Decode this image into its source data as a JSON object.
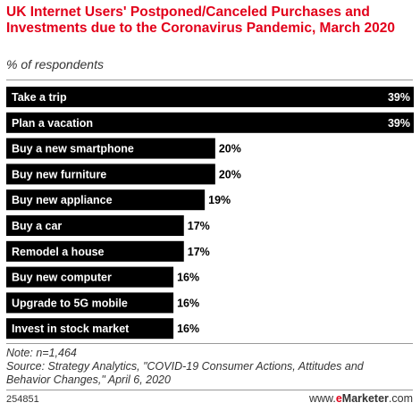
{
  "header": {
    "title": "UK Internet Users' Postponed/Canceled Purchases and Investments due to the Coronavirus Pandemic, March 2020",
    "subtitle": "% of respondents"
  },
  "chart_data": {
    "type": "bar",
    "orientation": "horizontal",
    "categories": [
      "Take a trip",
      "Plan a vacation",
      "Buy a new smartphone",
      "Buy new furniture",
      "Buy new appliance",
      "Buy a car",
      "Remodel a house",
      "Buy new computer",
      "Upgrade to 5G mobile",
      "Invest in stock market"
    ],
    "values": [
      39,
      39,
      20,
      20,
      19,
      17,
      17,
      16,
      16,
      16
    ],
    "value_labels": [
      "39%",
      "39%",
      "20%",
      "20%",
      "19%",
      "17%",
      "17%",
      "16%",
      "16%",
      "16%"
    ],
    "xlim": [
      0,
      39
    ],
    "bar_color": "#000000",
    "grid": false
  },
  "footer": {
    "note": "Note: n=1,464",
    "source_line1": "Source: Strategy Analytics, \"COVID-19 Consumer Actions, Attitudes and",
    "source_line2": "Behavior Changes,\" April 6, 2020",
    "chart_id": "254851",
    "brand_prefix": "www.",
    "brand_e": "e",
    "brand_name": "Marketer",
    "brand_suffix": ".com"
  }
}
